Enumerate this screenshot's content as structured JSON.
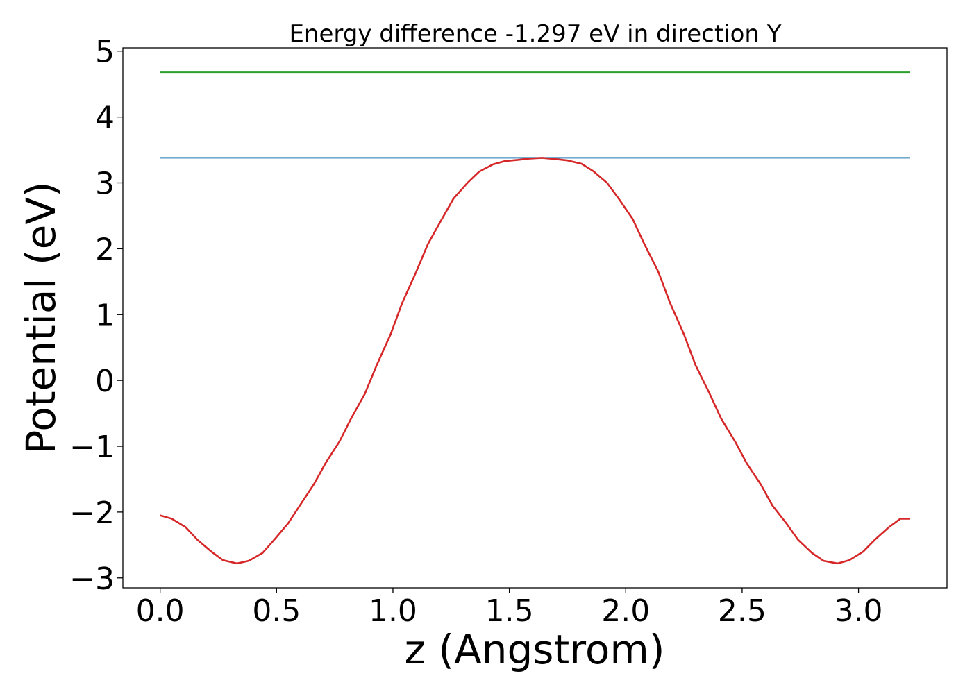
{
  "chart_data": {
    "type": "line",
    "title": "Energy difference -1.297 eV in direction Y",
    "xlabel": "z (Angstrom)",
    "ylabel": "Potential (eV)",
    "xlim": [
      -0.16,
      3.38
    ],
    "ylim": [
      -3.15,
      5.05
    ],
    "x_ticks": [
      0.0,
      0.5,
      1.0,
      1.5,
      2.0,
      2.5,
      3.0
    ],
    "x_tick_labels": [
      "0.0",
      "0.5",
      "1.0",
      "1.5",
      "2.0",
      "2.5",
      "3.0"
    ],
    "y_ticks": [
      -3,
      -2,
      -1,
      0,
      1,
      2,
      3,
      4,
      5
    ],
    "y_tick_labels": [
      "−3",
      "−2",
      "−1",
      "0",
      "1",
      "2",
      "3",
      "4",
      "5"
    ],
    "grid": false,
    "series": [
      {
        "color": "#2ca02c",
        "x": [
          0.0,
          3.22
        ],
        "y": [
          4.68,
          4.68
        ]
      },
      {
        "color": "#1f77b4",
        "x": [
          0.0,
          3.22
        ],
        "y": [
          3.38,
          3.38
        ]
      },
      {
        "color": "#d62728",
        "x": [
          0.0,
          0.05,
          0.11,
          0.16,
          0.22,
          0.27,
          0.33,
          0.38,
          0.44,
          0.49,
          0.55,
          0.6,
          0.66,
          0.71,
          0.77,
          0.82,
          0.88,
          0.93,
          0.99,
          1.04,
          1.1,
          1.15,
          1.21,
          1.26,
          1.32,
          1.37,
          1.43,
          1.48,
          1.54,
          1.59,
          1.64,
          1.7,
          1.75,
          1.81,
          1.86,
          1.92,
          1.97,
          2.03,
          2.08,
          2.14,
          2.19,
          2.25,
          2.3,
          2.36,
          2.41,
          2.47,
          2.52,
          2.58,
          2.63,
          2.69,
          2.74,
          2.8,
          2.85,
          2.91,
          2.96,
          3.02,
          3.07,
          3.13,
          3.18,
          3.22
        ],
        "y": [
          -2.05,
          -2.1,
          -2.23,
          -2.42,
          -2.6,
          -2.73,
          -2.78,
          -2.74,
          -2.62,
          -2.42,
          -2.17,
          -1.9,
          -1.58,
          -1.26,
          -0.93,
          -0.58,
          -0.2,
          0.23,
          0.7,
          1.18,
          1.65,
          2.07,
          2.45,
          2.76,
          3.0,
          3.17,
          3.28,
          3.33,
          3.35,
          3.37,
          3.38,
          3.36,
          3.34,
          3.29,
          3.18,
          3.0,
          2.76,
          2.45,
          2.07,
          1.65,
          1.18,
          0.7,
          0.23,
          -0.2,
          -0.58,
          -0.93,
          -1.26,
          -1.58,
          -1.9,
          -2.17,
          -2.42,
          -2.62,
          -2.74,
          -2.78,
          -2.73,
          -2.6,
          -2.42,
          -2.23,
          -2.1,
          -2.1
        ]
      }
    ]
  }
}
